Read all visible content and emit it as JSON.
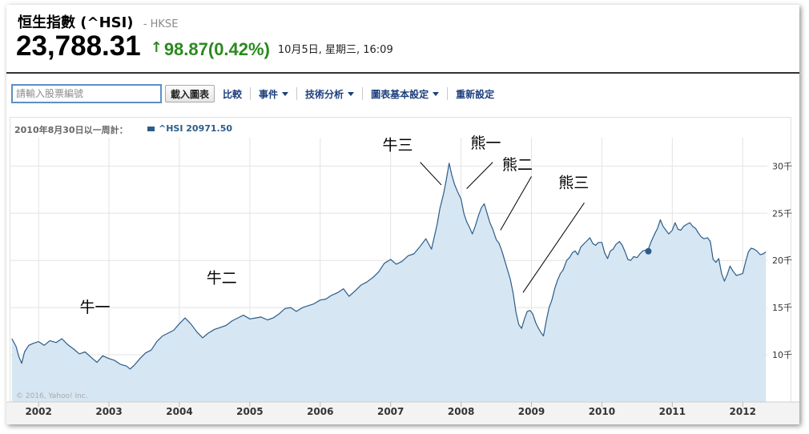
{
  "header": {
    "title": "恒生指數 (^HSI)",
    "exchange": "- HKSE",
    "price": "23,788.31",
    "change": "98.87(0.42%)",
    "datetime": "10月5日, 星期三, 16:09",
    "up_color": "#2a8a1e"
  },
  "toolbar": {
    "search_placeholder": "請輸入股票編號",
    "load_button": "載入圖表",
    "compare": "比較",
    "events": "事件",
    "technical": "技術分析",
    "chart_settings": "圖表基本設定",
    "reset": "重新設定"
  },
  "legend": {
    "range_text": "2010年8月30日以一周計：",
    "series_text": "^HSI 20971.50"
  },
  "chart_data": {
    "type": "area",
    "series_name": "^HSI",
    "line_color": "#2b5d8a",
    "fill_color": "#d6e6f2",
    "xlim": [
      2001.6,
      2012.35
    ],
    "ylim": [
      5000,
      33000
    ],
    "yticks": [
      {
        "value": 10000,
        "label": "10千"
      },
      {
        "value": 15000,
        "label": "15千"
      },
      {
        "value": 20000,
        "label": "20千"
      },
      {
        "value": 25000,
        "label": "25千"
      },
      {
        "value": 30000,
        "label": "30千"
      }
    ],
    "xticks": [
      {
        "value": 2002,
        "label": "2002"
      },
      {
        "value": 2003,
        "label": "2003"
      },
      {
        "value": 2004,
        "label": "2004"
      },
      {
        "value": 2005,
        "label": "2005"
      },
      {
        "value": 2006,
        "label": "2006"
      },
      {
        "value": 2007,
        "label": "2007"
      },
      {
        "value": 2008,
        "label": "2008"
      },
      {
        "value": 2009,
        "label": "2009"
      },
      {
        "value": 2010,
        "label": "2010"
      },
      {
        "value": 2011,
        "label": "2011"
      },
      {
        "value": 2012,
        "label": "2012"
      }
    ],
    "points": [
      [
        2001.62,
        11700
      ],
      [
        2001.68,
        10900
      ],
      [
        2001.72,
        9800
      ],
      [
        2001.76,
        9100
      ],
      [
        2001.8,
        10300
      ],
      [
        2001.86,
        11000
      ],
      [
        2001.92,
        11200
      ],
      [
        2002.0,
        11400
      ],
      [
        2002.08,
        11000
      ],
      [
        2002.16,
        11500
      ],
      [
        2002.25,
        11300
      ],
      [
        2002.33,
        11700
      ],
      [
        2002.41,
        11100
      ],
      [
        2002.5,
        10600
      ],
      [
        2002.58,
        10100
      ],
      [
        2002.66,
        10300
      ],
      [
        2002.75,
        9700
      ],
      [
        2002.83,
        9200
      ],
      [
        2002.91,
        9900
      ],
      [
        2003.0,
        9600
      ],
      [
        2003.08,
        9400
      ],
      [
        2003.16,
        9000
      ],
      [
        2003.25,
        8800
      ],
      [
        2003.3,
        8500
      ],
      [
        2003.36,
        8900
      ],
      [
        2003.44,
        9600
      ],
      [
        2003.52,
        10200
      ],
      [
        2003.6,
        10500
      ],
      [
        2003.68,
        11400
      ],
      [
        2003.76,
        12000
      ],
      [
        2003.84,
        12300
      ],
      [
        2003.92,
        12600
      ],
      [
        2004.0,
        13300
      ],
      [
        2004.08,
        13900
      ],
      [
        2004.16,
        13300
      ],
      [
        2004.25,
        12400
      ],
      [
        2004.33,
        11800
      ],
      [
        2004.41,
        12300
      ],
      [
        2004.5,
        12700
      ],
      [
        2004.58,
        12900
      ],
      [
        2004.66,
        13100
      ],
      [
        2004.75,
        13600
      ],
      [
        2004.83,
        13900
      ],
      [
        2004.91,
        14200
      ],
      [
        2005.0,
        13800
      ],
      [
        2005.08,
        13900
      ],
      [
        2005.16,
        14000
      ],
      [
        2005.25,
        13700
      ],
      [
        2005.33,
        13900
      ],
      [
        2005.41,
        14300
      ],
      [
        2005.5,
        14900
      ],
      [
        2005.58,
        15000
      ],
      [
        2005.66,
        14600
      ],
      [
        2005.75,
        15000
      ],
      [
        2005.83,
        15200
      ],
      [
        2005.91,
        15400
      ],
      [
        2006.0,
        15800
      ],
      [
        2006.08,
        15900
      ],
      [
        2006.16,
        16300
      ],
      [
        2006.25,
        16600
      ],
      [
        2006.33,
        17000
      ],
      [
        2006.41,
        16200
      ],
      [
        2006.5,
        16800
      ],
      [
        2006.58,
        17400
      ],
      [
        2006.66,
        17700
      ],
      [
        2006.75,
        18200
      ],
      [
        2006.83,
        18800
      ],
      [
        2006.91,
        19700
      ],
      [
        2007.0,
        20100
      ],
      [
        2007.08,
        19600
      ],
      [
        2007.16,
        19900
      ],
      [
        2007.25,
        20500
      ],
      [
        2007.33,
        20700
      ],
      [
        2007.41,
        21400
      ],
      [
        2007.5,
        22300
      ],
      [
        2007.58,
        21200
      ],
      [
        2007.62,
        22500
      ],
      [
        2007.66,
        23800
      ],
      [
        2007.7,
        25500
      ],
      [
        2007.75,
        27000
      ],
      [
        2007.79,
        28500
      ],
      [
        2007.83,
        30300
      ],
      [
        2007.87,
        29000
      ],
      [
        2007.91,
        28000
      ],
      [
        2007.95,
        27300
      ],
      [
        2008.0,
        26500
      ],
      [
        2008.04,
        25000
      ],
      [
        2008.08,
        24100
      ],
      [
        2008.12,
        23500
      ],
      [
        2008.16,
        22800
      ],
      [
        2008.2,
        23600
      ],
      [
        2008.25,
        24800
      ],
      [
        2008.29,
        25600
      ],
      [
        2008.33,
        26000
      ],
      [
        2008.37,
        25000
      ],
      [
        2008.41,
        24000
      ],
      [
        2008.45,
        23300
      ],
      [
        2008.5,
        22200
      ],
      [
        2008.54,
        21800
      ],
      [
        2008.58,
        21000
      ],
      [
        2008.62,
        20000
      ],
      [
        2008.66,
        19000
      ],
      [
        2008.7,
        18000
      ],
      [
        2008.74,
        16500
      ],
      [
        2008.78,
        14500
      ],
      [
        2008.82,
        13200
      ],
      [
        2008.86,
        12800
      ],
      [
        2008.9,
        13800
      ],
      [
        2008.94,
        14600
      ],
      [
        2008.98,
        14700
      ],
      [
        2009.02,
        14300
      ],
      [
        2009.06,
        13400
      ],
      [
        2009.1,
        12800
      ],
      [
        2009.14,
        12300
      ],
      [
        2009.17,
        12000
      ],
      [
        2009.21,
        13600
      ],
      [
        2009.25,
        15000
      ],
      [
        2009.29,
        15800
      ],
      [
        2009.33,
        17000
      ],
      [
        2009.37,
        17900
      ],
      [
        2009.41,
        18600
      ],
      [
        2009.45,
        19000
      ],
      [
        2009.5,
        20000
      ],
      [
        2009.54,
        20300
      ],
      [
        2009.58,
        20800
      ],
      [
        2009.62,
        21000
      ],
      [
        2009.66,
        20600
      ],
      [
        2009.7,
        21400
      ],
      [
        2009.75,
        21800
      ],
      [
        2009.79,
        22100
      ],
      [
        2009.83,
        22400
      ],
      [
        2009.87,
        21800
      ],
      [
        2009.91,
        21600
      ],
      [
        2009.95,
        21900
      ],
      [
        2010.0,
        21900
      ],
      [
        2010.04,
        20800
      ],
      [
        2010.08,
        20200
      ],
      [
        2010.12,
        21000
      ],
      [
        2010.16,
        21200
      ],
      [
        2010.2,
        21700
      ],
      [
        2010.25,
        22000
      ],
      [
        2010.29,
        21600
      ],
      [
        2010.33,
        20900
      ],
      [
        2010.37,
        20100
      ],
      [
        2010.41,
        20000
      ],
      [
        2010.45,
        20400
      ],
      [
        2010.5,
        20300
      ],
      [
        2010.54,
        20700
      ],
      [
        2010.58,
        21000
      ],
      [
        2010.62,
        21100
      ],
      [
        2010.66,
        21200
      ],
      [
        2010.7,
        22000
      ],
      [
        2010.75,
        22800
      ],
      [
        2010.79,
        23400
      ],
      [
        2010.83,
        24300
      ],
      [
        2010.87,
        23600
      ],
      [
        2010.91,
        23200
      ],
      [
        2010.95,
        22800
      ],
      [
        2011.0,
        23200
      ],
      [
        2011.04,
        24000
      ],
      [
        2011.08,
        23300
      ],
      [
        2011.12,
        23200
      ],
      [
        2011.16,
        23600
      ],
      [
        2011.2,
        23800
      ],
      [
        2011.25,
        24000
      ],
      [
        2011.29,
        23600
      ],
      [
        2011.33,
        23400
      ],
      [
        2011.37,
        22900
      ],
      [
        2011.41,
        22500
      ],
      [
        2011.45,
        22300
      ],
      [
        2011.5,
        22400
      ],
      [
        2011.54,
        22000
      ],
      [
        2011.58,
        20100
      ],
      [
        2011.62,
        19800
      ],
      [
        2011.66,
        20200
      ],
      [
        2011.7,
        18600
      ],
      [
        2011.74,
        17800
      ],
      [
        2011.78,
        18500
      ],
      [
        2011.82,
        19400
      ],
      [
        2011.86,
        18900
      ],
      [
        2011.91,
        18400
      ],
      [
        2011.95,
        18500
      ],
      [
        2012.0,
        18600
      ],
      [
        2012.04,
        19800
      ],
      [
        2012.08,
        20900
      ],
      [
        2012.12,
        21300
      ],
      [
        2012.16,
        21200
      ],
      [
        2012.2,
        21000
      ],
      [
        2012.25,
        20600
      ],
      [
        2012.29,
        20700
      ],
      [
        2012.33,
        20900
      ]
    ],
    "marker": {
      "x": 2010.66,
      "y": 20971.5
    },
    "annotations": [
      {
        "text": "牛一",
        "x": 2002.8,
        "y": 14500
      },
      {
        "text": "牛二",
        "x": 2004.6,
        "y": 17600
      },
      {
        "text": "牛三",
        "x": 2007.1,
        "y": 31700
      },
      {
        "text": "熊一",
        "x": 2008.35,
        "y": 31900
      },
      {
        "text": "熊二",
        "x": 2008.8,
        "y": 29600
      },
      {
        "text": "熊三",
        "x": 2009.6,
        "y": 27700
      }
    ],
    "pointer_lines": [
      {
        "from": [
          2007.42,
          30400
        ],
        "to": [
          2007.72,
          28000
        ]
      },
      {
        "from": [
          2008.45,
          30400
        ],
        "to": [
          2008.08,
          27600
        ]
      },
      {
        "from": [
          2009.0,
          28900
        ],
        "to": [
          2008.56,
          23200
        ]
      },
      {
        "from": [
          2009.75,
          26100
        ],
        "to": [
          2008.88,
          16600
        ]
      }
    ],
    "copyright": "© 2016, Yahoo! Inc."
  }
}
